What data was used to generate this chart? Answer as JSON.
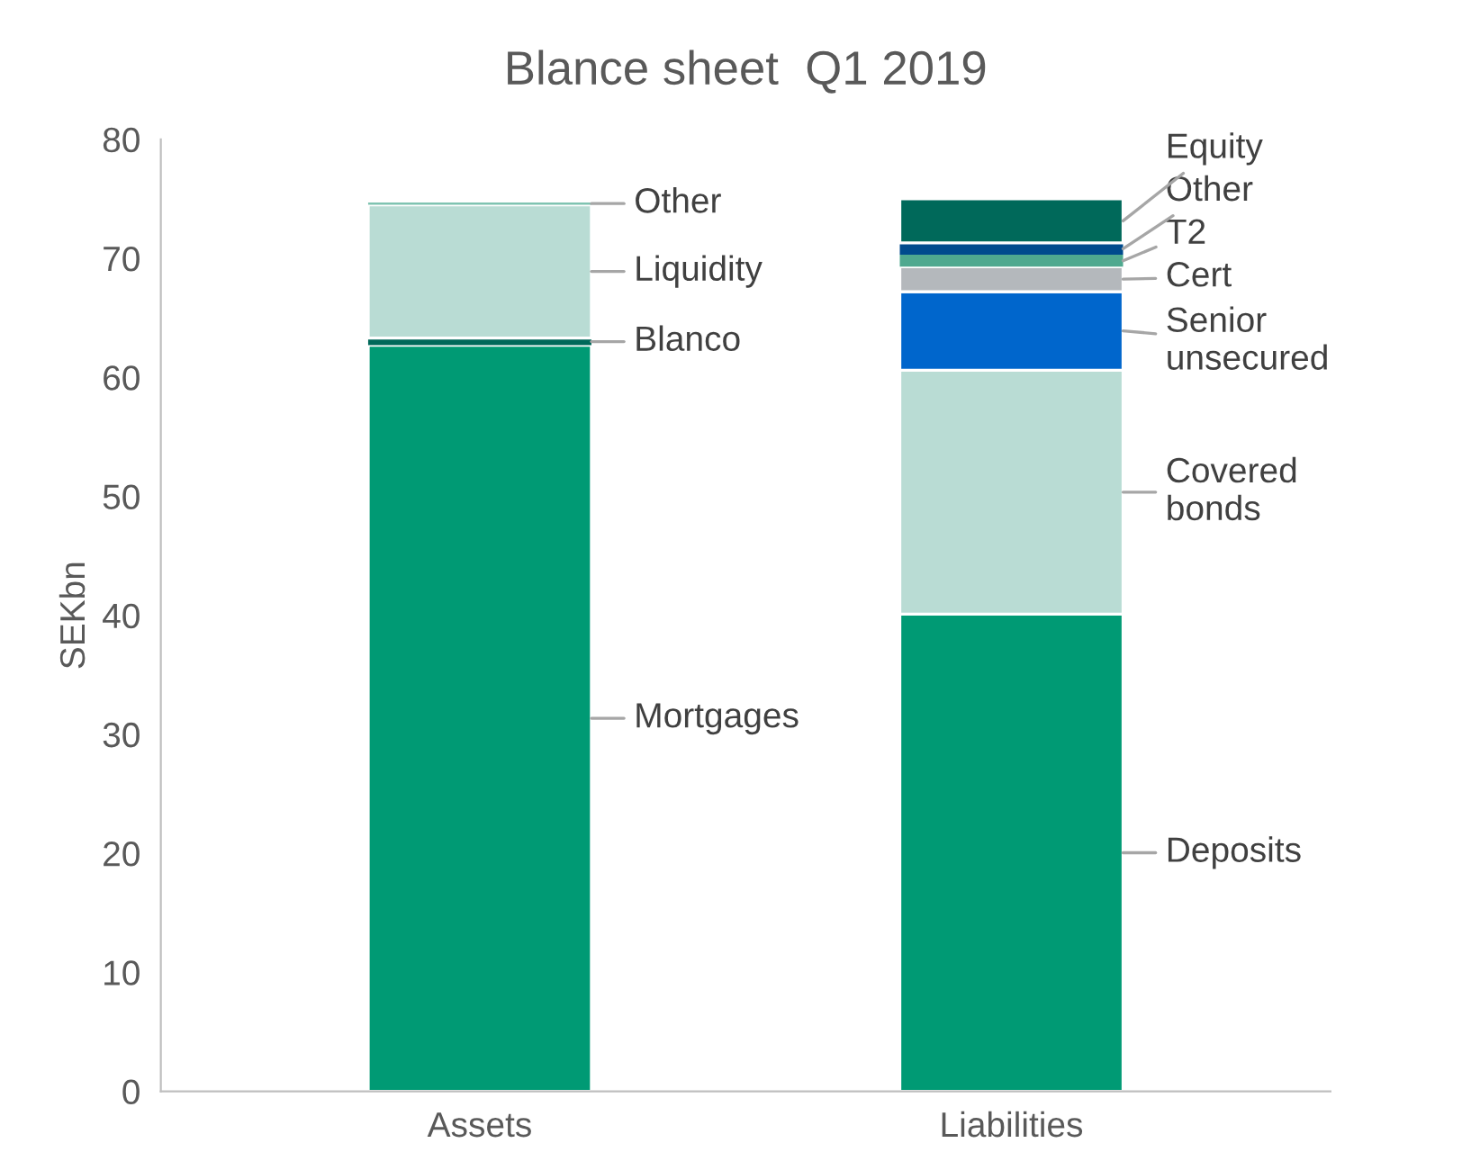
{
  "chart_data": {
    "type": "bar",
    "stacked": true,
    "title": "Blance sheet  Q1 2019",
    "ylabel": "SEKbn",
    "categories": [
      "Assets",
      "Liabilities"
    ],
    "series": [
      {
        "name": "Mortgages",
        "color": "#009a74",
        "values": [
          62.7,
          null
        ]
      },
      {
        "name": "Blanco",
        "color": "#00695a",
        "values": [
          0.6,
          null
        ]
      },
      {
        "name": "Liquidity",
        "color": "#b9dcd4",
        "values": [
          11.2,
          null
        ]
      },
      {
        "name": "Other",
        "color": "#7fc3b1",
        "values": [
          0.2,
          null
        ]
      },
      {
        "name": "Deposits",
        "color": "#009a74",
        "values": [
          null,
          40.1
        ]
      },
      {
        "name": "Covered\nbonds",
        "color": "#b9dcd4",
        "values": [
          null,
          20.5
        ]
      },
      {
        "name": "Senior\nunsecured",
        "color": "#0066cc",
        "values": [
          null,
          6.6
        ]
      },
      {
        "name": "Cert",
        "color": "#b4b8bc",
        "values": [
          null,
          2.1
        ]
      },
      {
        "name": "T2",
        "color": "#4fa98f",
        "values": [
          null,
          1.0
        ]
      },
      {
        "name": "Other",
        "color": "#004b8d",
        "values": [
          null,
          1.0
        ]
      },
      {
        "name": "Equity",
        "color": "#00695a",
        "values": [
          null,
          3.7
        ]
      }
    ],
    "ylim": [
      0,
      80
    ],
    "yticks": [
      0,
      10,
      20,
      30,
      40,
      50,
      60,
      70,
      80
    ],
    "grid": false,
    "legend": false
  }
}
